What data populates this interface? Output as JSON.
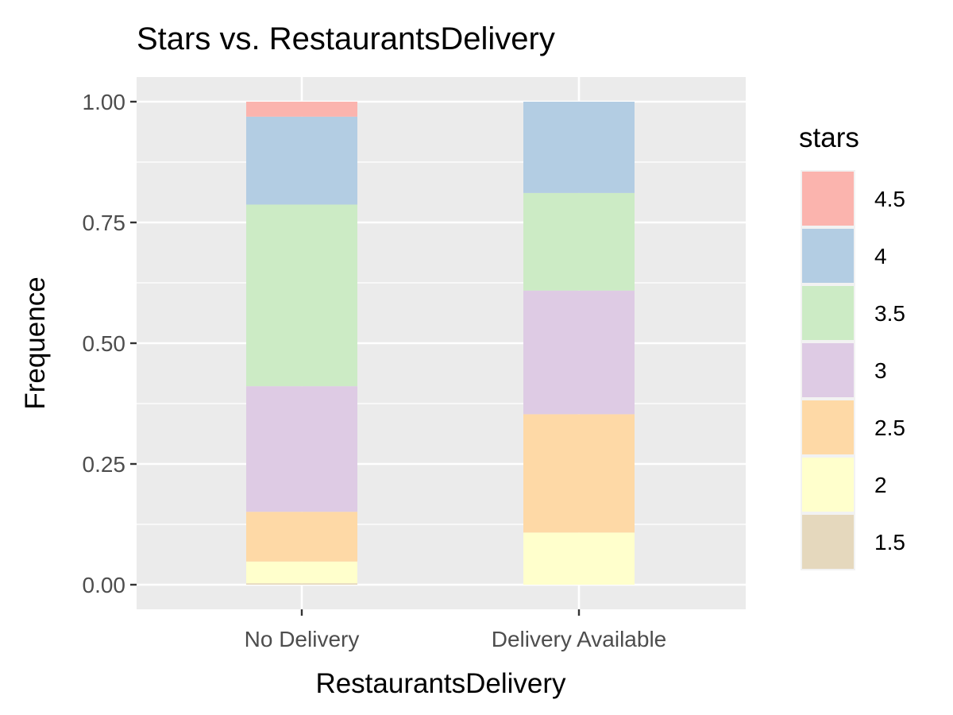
{
  "chart_data": {
    "type": "bar",
    "stacked": true,
    "title": "Stars vs. RestaurantsDelivery",
    "xlabel": "RestaurantsDelivery",
    "ylabel": "Frequence",
    "ylim": [
      0,
      1
    ],
    "yticks": [
      "0.00",
      "0.25",
      "0.50",
      "0.75",
      "1.00"
    ],
    "categories": [
      "No Delivery",
      "Delivery Available"
    ],
    "legend": {
      "title": "stars",
      "position": "right"
    },
    "grid": true,
    "series": [
      {
        "name": "1.5",
        "color": "#e5d8bd",
        "values": [
          0.003,
          0.0
        ]
      },
      {
        "name": "2",
        "color": "#ffffcc",
        "values": [
          0.045,
          0.108
        ]
      },
      {
        "name": "2.5",
        "color": "#fed9a6",
        "values": [
          0.103,
          0.245
        ]
      },
      {
        "name": "3",
        "color": "#decbe4",
        "values": [
          0.26,
          0.256
        ]
      },
      {
        "name": "3.5",
        "color": "#ccebc5",
        "values": [
          0.376,
          0.202
        ]
      },
      {
        "name": "4",
        "color": "#b3cde3",
        "values": [
          0.182,
          0.189
        ]
      },
      {
        "name": "4.5",
        "color": "#fbb4ae",
        "values": [
          0.031,
          0.0
        ]
      }
    ]
  }
}
